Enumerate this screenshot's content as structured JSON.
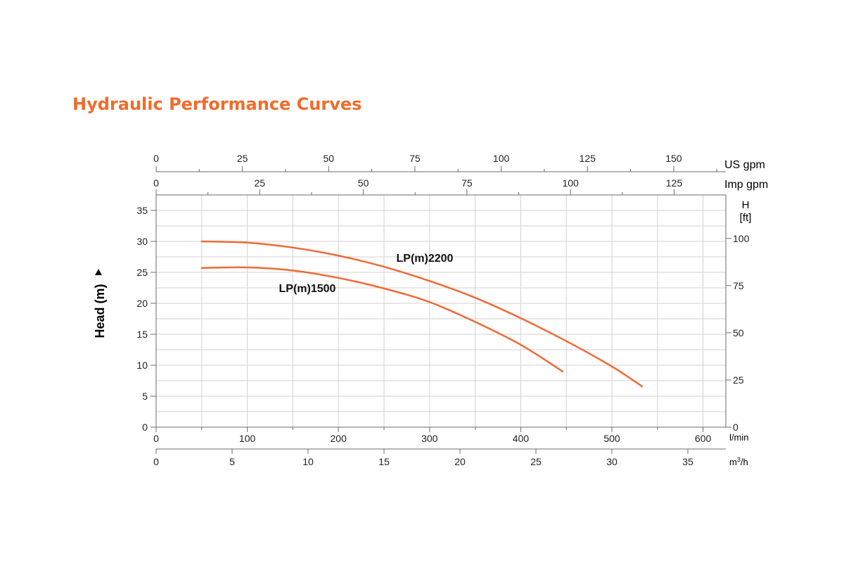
{
  "title": "Hydraulic Performance Curves",
  "colors": {
    "title": "#f26b2a",
    "curve": "#ef6a35",
    "grid": "#d2d2d2",
    "frame": "#6b6b6b",
    "axis_text": "#222222"
  },
  "chart_data": {
    "type": "line",
    "title": "",
    "xlabel": "l/min",
    "ylabel": "Head (m)",
    "xlim": [
      0,
      625
    ],
    "ylim": [
      0,
      37.5
    ],
    "grid": true,
    "x_ticks": [
      "0",
      "100",
      "200",
      "300",
      "400",
      "500",
      "600"
    ],
    "y_ticks": [
      "0",
      "5",
      "10",
      "15",
      "20",
      "25",
      "30",
      "35"
    ],
    "secondary_axes": {
      "us_gpm": {
        "label": "US gpm",
        "ticks": [
          "0",
          "25",
          "50",
          "75",
          "100",
          "125",
          "150"
        ]
      },
      "imp_gpm": {
        "label": "Imp gpm",
        "ticks": [
          "0",
          "25",
          "50",
          "75",
          "100",
          "125"
        ]
      },
      "m3h": {
        "label": "m³/h",
        "label_base": "m",
        "label_sup": "3",
        "label_tail": "/h",
        "ticks": [
          "0",
          "5",
          "10",
          "15",
          "20",
          "25",
          "30",
          "35"
        ]
      },
      "head_ft": {
        "label_line1": "H",
        "label_line2": "[ft]",
        "ticks": [
          "0",
          "25",
          "50",
          "75",
          "100"
        ]
      }
    },
    "series": [
      {
        "name": "LP(m)2200",
        "x": [
          50,
          100,
          150,
          200,
          250,
          300,
          350,
          400,
          450,
          500,
          533
        ],
        "y": [
          30.0,
          29.8,
          29.0,
          27.7,
          25.9,
          23.6,
          20.9,
          17.6,
          13.9,
          9.8,
          6.6
        ]
      },
      {
        "name": "LP(m)1500",
        "x": [
          50,
          100,
          150,
          200,
          250,
          300,
          350,
          400,
          446
        ],
        "y": [
          25.7,
          25.8,
          25.3,
          24.1,
          22.4,
          20.2,
          17.0,
          13.3,
          9.0
        ]
      }
    ]
  }
}
